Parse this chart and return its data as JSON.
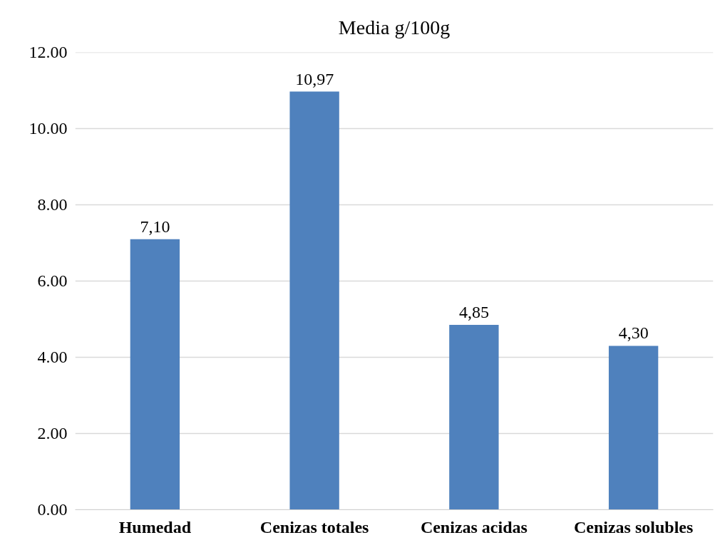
{
  "chart_data": {
    "type": "bar",
    "title": "Media g/100g",
    "categories": [
      "Humedad",
      "Cenizas totales",
      "Cenizas acidas",
      "Cenizas solubles"
    ],
    "values": [
      7.1,
      10.97,
      4.85,
      4.3
    ],
    "value_labels": [
      "7,10",
      "10,97",
      "4,85",
      "4,30"
    ],
    "color": "#4f81bd",
    "ylim": [
      0,
      12
    ],
    "yticks": [
      {
        "value": 0,
        "label": "0.00"
      },
      {
        "value": 2,
        "label": "2.00"
      },
      {
        "value": 4,
        "label": "4.00"
      },
      {
        "value": 6,
        "label": "6.00"
      },
      {
        "value": 8,
        "label": "8.00"
      },
      {
        "value": 10,
        "label": "10.00"
      },
      {
        "value": 12,
        "label": "12.00"
      }
    ],
    "grid": "y"
  }
}
